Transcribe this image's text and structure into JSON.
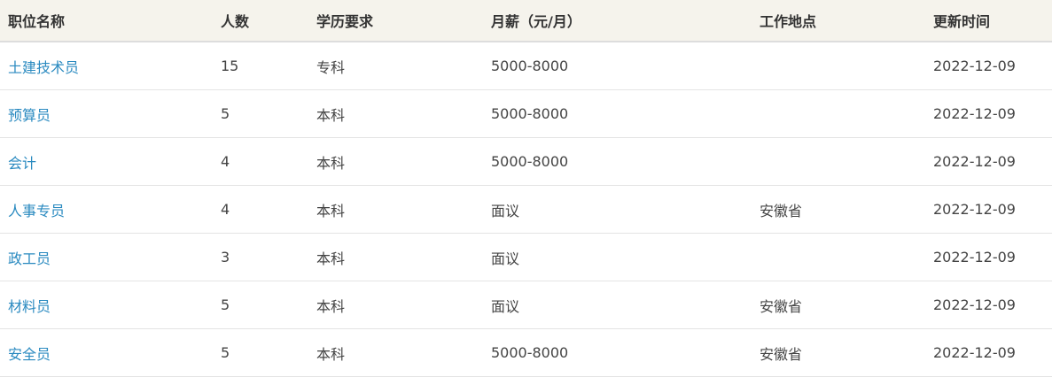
{
  "headers": [
    "职位名称",
    "人数",
    "学历要求",
    "月薪（元/月）",
    "工作地点",
    "更新时间"
  ],
  "rows": [
    {
      "title": "土建技术员",
      "count": "15",
      "edu": "专科",
      "salary": "5000-8000",
      "location": "",
      "updated": "2022-12-09"
    },
    {
      "title": "预算员",
      "count": "5",
      "edu": "本科",
      "salary": "5000-8000",
      "location": "",
      "updated": "2022-12-09"
    },
    {
      "title": "会计",
      "count": "4",
      "edu": "本科",
      "salary": "5000-8000",
      "location": "",
      "updated": "2022-12-09"
    },
    {
      "title": "人事专员",
      "count": "4",
      "edu": "本科",
      "salary": "面议",
      "location": "安徽省",
      "updated": "2022-12-09"
    },
    {
      "title": "政工员",
      "count": "3",
      "edu": "本科",
      "salary": "面议",
      "location": "",
      "updated": "2022-12-09"
    },
    {
      "title": "材料员",
      "count": "5",
      "edu": "本科",
      "salary": "面议",
      "location": "安徽省",
      "updated": "2022-12-09"
    },
    {
      "title": "安全员",
      "count": "5",
      "edu": "本科",
      "salary": "5000-8000",
      "location": "安徽省",
      "updated": "2022-12-09"
    }
  ],
  "colors": {
    "link": "#2a8ac0",
    "header_bg": "#f5f3ec"
  }
}
